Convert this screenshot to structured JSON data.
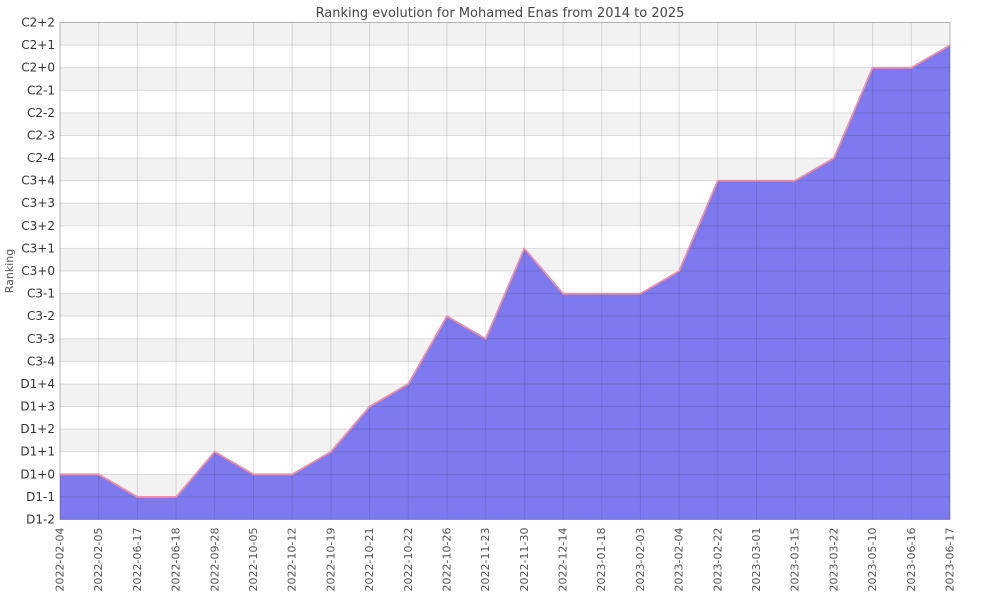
{
  "chart_data": {
    "type": "area",
    "title": "Ranking evolution for Mohamed Enas from 2014 to 2025",
    "xlabel": "",
    "ylabel": "Ranking",
    "x": [
      "2022-02-04",
      "2022-02-05",
      "2022-06-17",
      "2022-06-18",
      "2022-09-28",
      "2022-10-05",
      "2022-10-12",
      "2022-10-19",
      "2022-10-21",
      "2022-10-22",
      "2022-10-26",
      "2022-11-23",
      "2022-11-30",
      "2022-12-14",
      "2023-01-18",
      "2023-02-03",
      "2023-02-04",
      "2023-02-22",
      "2023-03-01",
      "2023-03-15",
      "2023-03-22",
      "2023-05-10",
      "2023-06-16",
      "2023-06-17"
    ],
    "values": [
      "D1+0",
      "D1+0",
      "D1-1",
      "D1-1",
      "D1+1",
      "D1+0",
      "D1+0",
      "D1+1",
      "D1+3",
      "D1+4",
      "C3-2",
      "C3-3",
      "C3+1",
      "C3-1",
      "C3-1",
      "C3-1",
      "C3+0",
      "C3+4",
      "C3+4",
      "C3+4",
      "C2-4",
      "C2+0",
      "C2+0",
      "C2+1"
    ],
    "y_ticks_top_to_bottom": [
      "C2+2",
      "C2+1",
      "C2+0",
      "C2-1",
      "C2-2",
      "C2-3",
      "C2-4",
      "C3+4",
      "C3+3",
      "C3+2",
      "C3+1",
      "C3+0",
      "C3-1",
      "C3-2",
      "C3-3",
      "C3-4",
      "D1+4",
      "D1+3",
      "D1+2",
      "D1+1",
      "D1+0",
      "D1-1",
      "D1-2"
    ],
    "ylim": [
      "D1-2",
      "C2+2"
    ],
    "grid": true,
    "legend": false,
    "x_tick_rotation_deg": -90,
    "colors": {
      "area_fill": "#7d79ee",
      "line": "#ef8fad",
      "band_gray": "#f2f2f2",
      "band_white": "#ffffff",
      "grid_line": "rgba(40,40,40,0.15)",
      "plot_border": "rgba(40,40,40,0.22)",
      "title_text": "#444444",
      "y_tick_text": "#333333",
      "x_tick_text": "#555555",
      "axis_label_text": "#555555"
    }
  }
}
